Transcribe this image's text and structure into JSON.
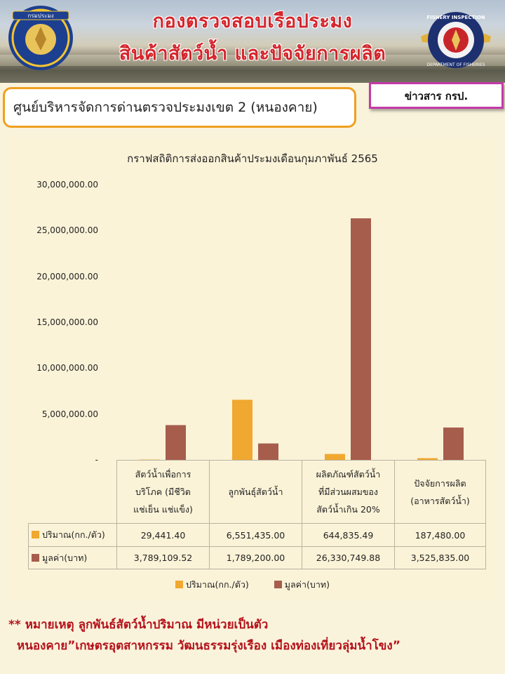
{
  "header": {
    "title_line1": "กองตรวจสอบเรือประมง",
    "title_line2": "สินค้าสัตว์น้ำ และปัจจัยการผลิต",
    "right_logo_text": "FISHERY INSPECTION · DEPARTMENT OF FISHERIES",
    "left_logo_text": "กรมประมง"
  },
  "center_name": "ศูนย์บริหารจัดการด่านตรวจประมงเขต 2 (หนองคาย)",
  "news_label": "ข่าวสาร กรป.",
  "colors": {
    "quantity": "#f0a830",
    "value": "#a65d4c",
    "title_red": "#d4252b"
  },
  "chart_data": {
    "type": "bar",
    "title": "กราฟสถิติการส่งออกสินค้าประมงเดือนกุมภาพันธ์ 2565",
    "ylim": [
      0,
      30000000
    ],
    "y_ticks": [
      "-",
      "5,000,000.00",
      "10,000,000.00",
      "15,000,000.00",
      "20,000,000.00",
      "25,000,000.00",
      "30,000,000.00"
    ],
    "categories": [
      [
        "สัตว์น้ำเพื่อการ",
        "บริโภค (มีชีวิต",
        "แช่เย็น แช่แข็ง)"
      ],
      [
        "ลูกพันธุ์สัตว์น้ำ"
      ],
      [
        "ผลิตภัณฑ์สัตว์น้ำ",
        "ที่มีส่วนผสมของ",
        "สัตว์น้ำเกิน 20%"
      ],
      [
        "ปัจจัยการผลิต",
        "(อาหารสัตว์น้ำ)"
      ]
    ],
    "series": [
      {
        "name": "ปริมาณ(กก./ตัว)",
        "values": [
          29441.4,
          6551435.0,
          644835.49,
          187480.0
        ],
        "labels": [
          "29,441.40",
          "6,551,435.00",
          "644,835.49",
          "187,480.00"
        ]
      },
      {
        "name": "มูลค่า(บาท)",
        "values": [
          3789109.52,
          1789200.0,
          26330749.88,
          3525835.0
        ],
        "labels": [
          "3,789,109.52",
          "1,789,200.00",
          "26,330,749.88",
          "3,525,835.00"
        ]
      }
    ],
    "legend_position": "bottom",
    "grid": false
  },
  "notes": {
    "line1": "** หมายเหตุ ลูกพันธ์สัตว์น้ำปริมาณ มีหน่วยเป็นตัว",
    "line2": "หนองคาย”เกษตรอุตสาหกรรม วัฒนธรรมรุ่งเรือง เมืองท่องเที่ยวลุ่มน้ำโขง”"
  }
}
